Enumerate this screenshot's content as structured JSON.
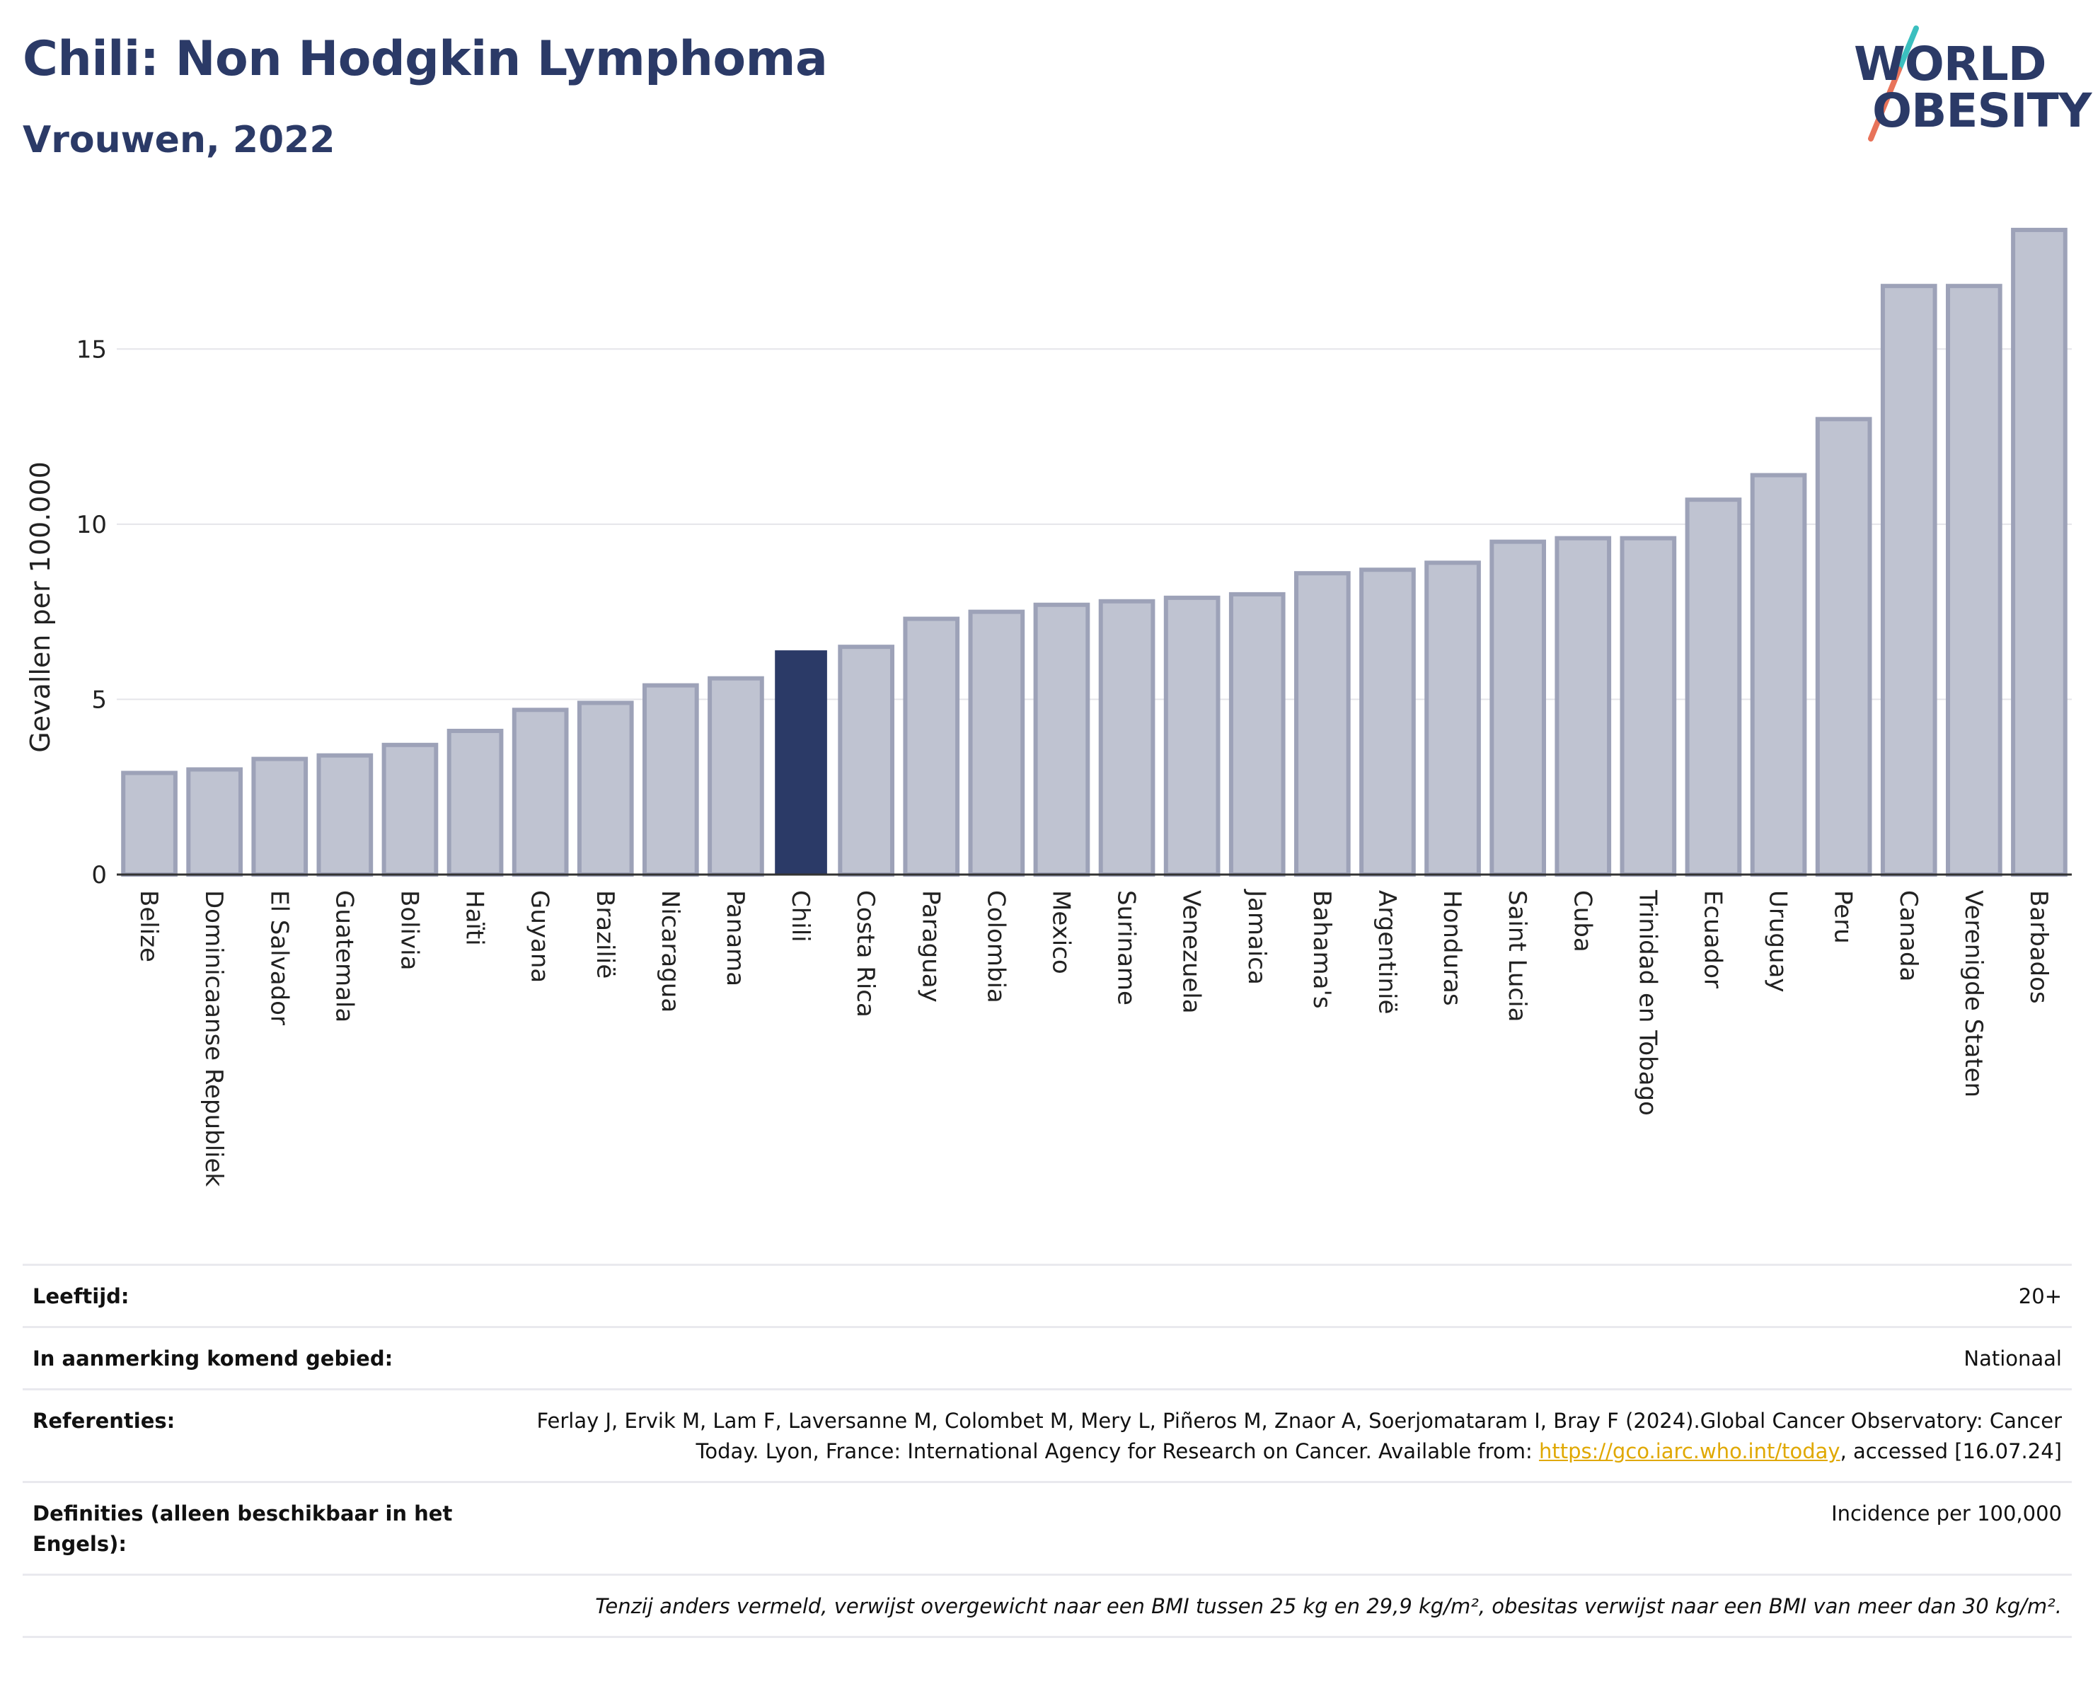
{
  "header": {
    "title": "Chili: Non Hodgkin Lymphoma",
    "subtitle": "Vrouwen, 2022"
  },
  "logo": {
    "line1": "WORLD",
    "line2": "OBESITY",
    "colors": {
      "text": "#2b3a67",
      "slash_top": "#3bbfbf",
      "slash_bottom": "#e8735a"
    }
  },
  "colors": {
    "highlight": "#2b3a67",
    "bar_fill": "#bfc3d1",
    "bar_stroke": "#9da2b8",
    "grid": "#e5e5ea",
    "axis": "#333333"
  },
  "chart_data": {
    "type": "bar",
    "ylabel": "Gevallen per 100.000",
    "xlabel": "",
    "ylim": [
      0,
      18.5
    ],
    "yticks": [
      0,
      5,
      10,
      15
    ],
    "grid": true,
    "highlight": "Chili",
    "categories": [
      "Belize",
      "Dominicaanse Republiek",
      "El Salvador",
      "Guatemala",
      "Bolivia",
      "Haïti",
      "Guyana",
      "Brazilië",
      "Nicaragua",
      "Panama",
      "Chili",
      "Costa Rica",
      "Paraguay",
      "Colombia",
      "Mexico",
      "Suriname",
      "Venezuela",
      "Jamaica",
      "Bahama's",
      "Argentinië",
      "Honduras",
      "Saint Lucia",
      "Cuba",
      "Trinidad en Tobago",
      "Ecuador",
      "Uruguay",
      "Peru",
      "Canada",
      "Verenigde Staten",
      "Barbados"
    ],
    "values": [
      2.9,
      3.0,
      3.3,
      3.4,
      3.7,
      4.1,
      4.7,
      4.9,
      5.4,
      5.6,
      6.4,
      6.5,
      7.3,
      7.5,
      7.7,
      7.8,
      7.9,
      8.0,
      8.6,
      8.7,
      8.9,
      9.5,
      9.6,
      9.6,
      10.7,
      11.4,
      13.0,
      16.8,
      16.8,
      18.4
    ]
  },
  "meta": {
    "rows": [
      {
        "label": "Leeftijd:",
        "value": "20+"
      },
      {
        "label": "In aanmerking komend gebied:",
        "value": "Nationaal"
      }
    ],
    "references": {
      "label": "Referenties:",
      "text_before_link": "Ferlay J, Ervik M, Lam F, Laversanne M, Colombet M, Mery L, Piñeros M, Znaor A, Soerjomataram I, Bray F (2024).Global Cancer Observatory: Cancer Today. Lyon, France: International Agency for Research on Cancer. Available from: ",
      "link": "https://gco.iarc.who.int/today",
      "text_after_link": ", accessed [16.07.24]"
    },
    "definitions": {
      "label": "Definities (alleen beschikbaar in het Engels):",
      "value": "Incidence per 100,000"
    },
    "footnote": "Tenzij anders vermeld, verwijst overgewicht naar een BMI tussen 25 kg en 29,9 kg/m², obesitas verwijst naar een BMI van meer dan 30 kg/m²."
  }
}
